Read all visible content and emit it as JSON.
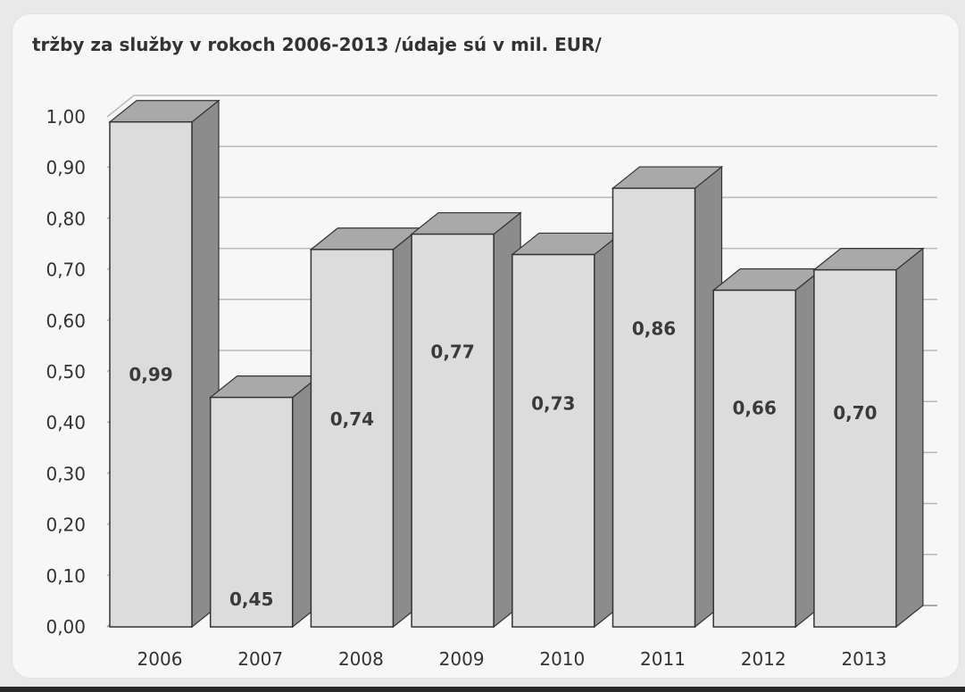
{
  "chart_data": {
    "type": "bar",
    "title": "tržby za služby v rokoch 2006-2013 /údaje sú v mil. EUR/",
    "categories": [
      "2006",
      "2007",
      "2008",
      "2009",
      "2010",
      "2011",
      "2012",
      "2013"
    ],
    "values": [
      0.99,
      0.45,
      0.74,
      0.77,
      0.73,
      0.86,
      0.66,
      0.7
    ],
    "data_labels": [
      "0,99",
      "0,45",
      "0,74",
      "0,77",
      "0,73",
      "0,86",
      "0,66",
      "0,70"
    ],
    "yticks": [
      "0,00",
      "0,10",
      "0,20",
      "0,30",
      "0,40",
      "0,50",
      "0,60",
      "0,70",
      "0,80",
      "0,90",
      "1,00"
    ],
    "ylim": [
      0,
      1.0
    ],
    "xlabel": "",
    "ylabel": "",
    "grid": true,
    "legend": "none",
    "style": "3d-column",
    "colors": {
      "bar_front": "#dcdcdc",
      "bar_side": "#8c8c8c",
      "bar_top": "#a9a9a9",
      "grid": "#b8b8b8"
    }
  }
}
